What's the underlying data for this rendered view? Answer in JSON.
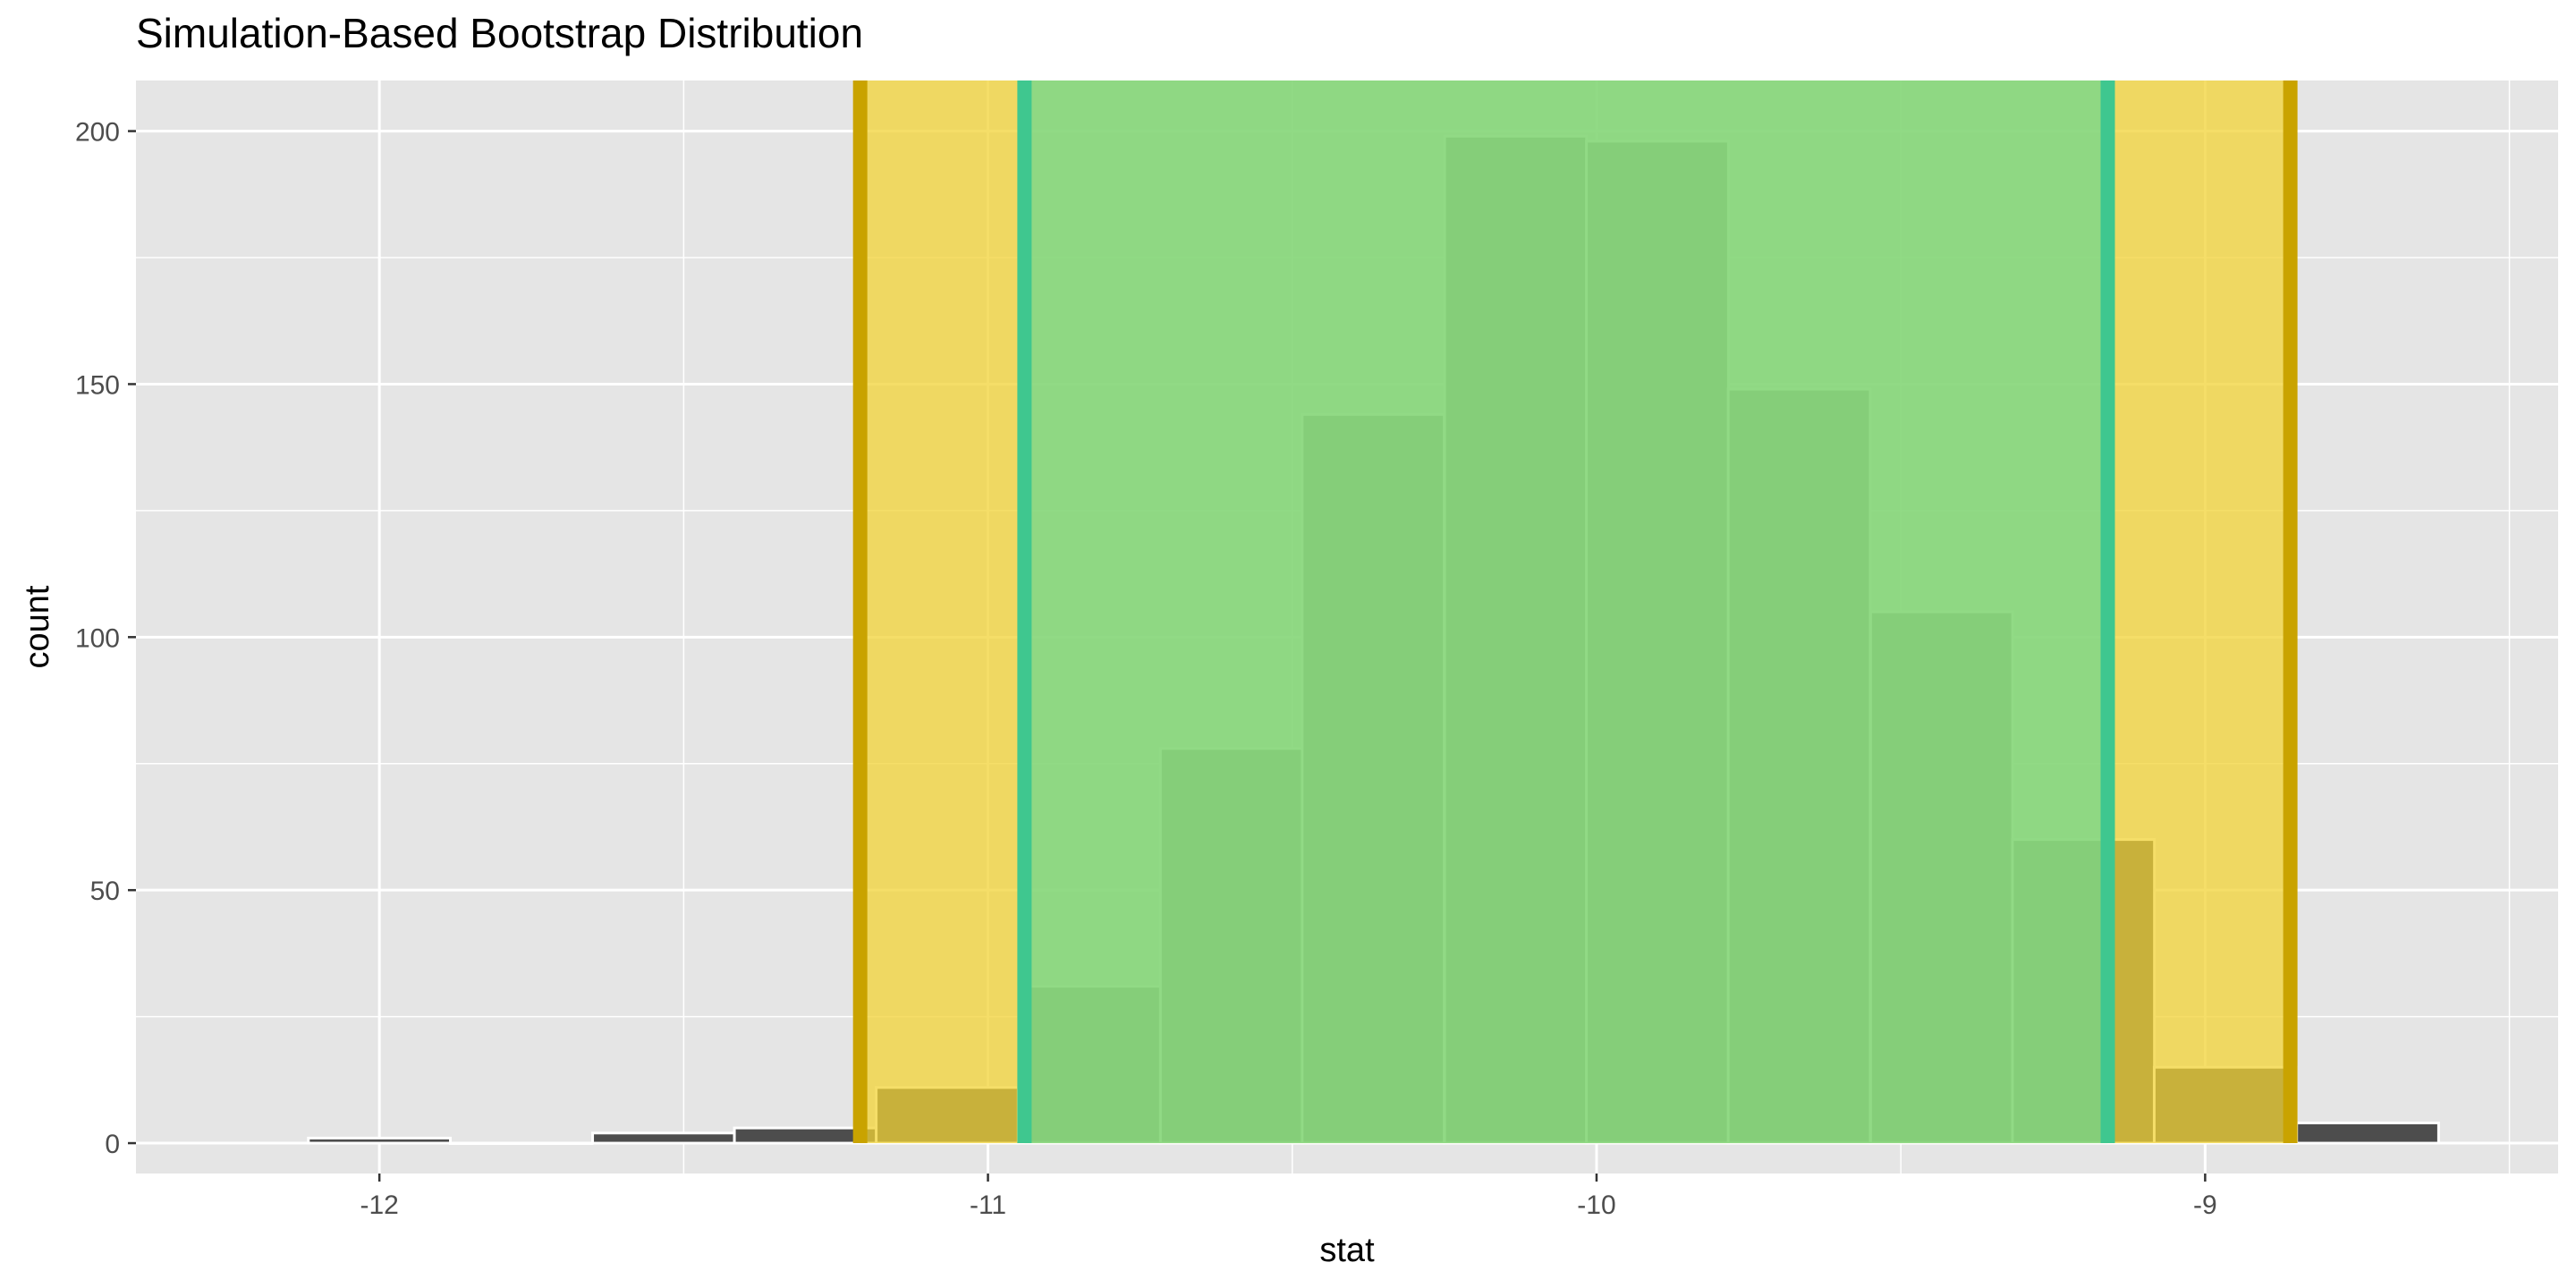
{
  "chart_data": {
    "type": "bar",
    "title": "Simulation-Based Bootstrap Distribution",
    "xlabel": "stat",
    "ylabel": "count",
    "xlim": [
      -12.4,
      -8.42
    ],
    "ylim": [
      -6,
      210
    ],
    "x_ticks": [
      -12,
      -11,
      -10,
      -9
    ],
    "x_tick_labels": [
      "-12",
      "-11",
      "-10",
      "-9"
    ],
    "y_ticks": [
      0,
      50,
      100,
      150,
      200
    ],
    "y_tick_labels": [
      "0",
      "50",
      "100",
      "150",
      "200"
    ],
    "grid": true,
    "bin_width": 0.2333,
    "bins": [
      {
        "x": -12.0,
        "count": 1
      },
      {
        "x": -11.767,
        "count": 0
      },
      {
        "x": -11.533,
        "count": 2
      },
      {
        "x": -11.3,
        "count": 3
      },
      {
        "x": -11.067,
        "count": 11
      },
      {
        "x": -10.833,
        "count": 31
      },
      {
        "x": -10.6,
        "count": 78
      },
      {
        "x": -10.367,
        "count": 144
      },
      {
        "x": -10.133,
        "count": 199
      },
      {
        "x": -9.9,
        "count": 198
      },
      {
        "x": -9.667,
        "count": 149
      },
      {
        "x": -9.433,
        "count": 105
      },
      {
        "x": -9.2,
        "count": 60
      },
      {
        "x": -8.967,
        "count": 15
      },
      {
        "x": -8.733,
        "count": 4
      }
    ],
    "intervals": [
      {
        "lower": -11.21,
        "upper": -8.86,
        "fill": "#F2D336",
        "line": "#C9A300"
      },
      {
        "lower": -10.94,
        "upper": -9.16,
        "fill": "#6FD88F",
        "line": "#3FC78F"
      }
    ],
    "colors": {
      "panel": "#E5E5E5",
      "grid": "#FFFFFF",
      "bar_fill": "#4D4D4D",
      "bar_outline": "#FFFFFF"
    }
  }
}
